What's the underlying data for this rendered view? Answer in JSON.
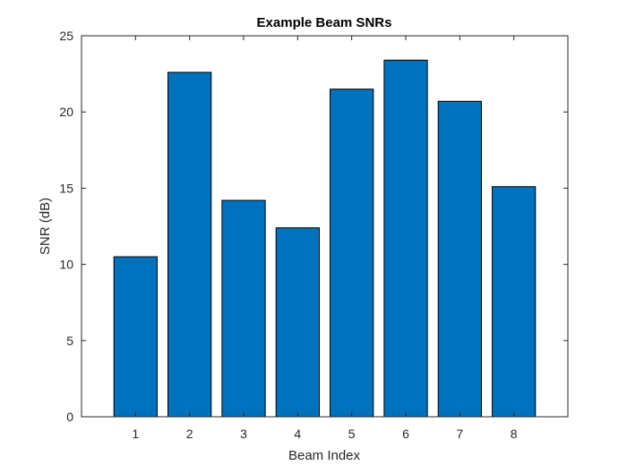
{
  "chart_data": {
    "type": "bar",
    "title": "Example Beam SNRs",
    "xlabel": "Beam Index",
    "ylabel": "SNR (dB)",
    "categories": [
      "1",
      "2",
      "3",
      "4",
      "5",
      "6",
      "7",
      "8"
    ],
    "values": [
      10.5,
      22.6,
      14.2,
      12.4,
      21.5,
      23.4,
      20.7,
      15.1
    ],
    "ylim": [
      0,
      25
    ],
    "yticks": [
      0,
      5,
      10,
      15,
      20,
      25
    ],
    "grid": false,
    "bar_color": "#0072BD",
    "bar_edge_color": "#000000"
  }
}
